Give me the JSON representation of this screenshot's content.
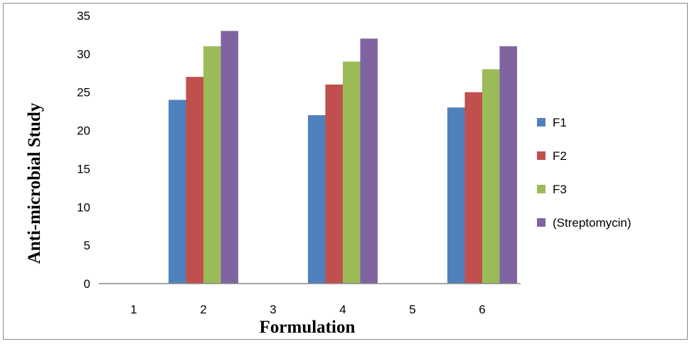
{
  "chart_data": {
    "type": "bar",
    "title": "",
    "xlabel": "Formulation",
    "ylabel": "Anti-microbial Study",
    "categories": [
      "1",
      "2",
      "3",
      "4",
      "5",
      "6"
    ],
    "ylim": [
      0,
      35
    ],
    "yticks": [
      "0",
      "5",
      "10",
      "15",
      "20",
      "25",
      "30",
      "35"
    ],
    "grid": false,
    "legend_position": "right",
    "series": [
      {
        "name": "F1",
        "color": "#4f81bd",
        "values": [
          null,
          24,
          null,
          22,
          null,
          23
        ]
      },
      {
        "name": "F2",
        "color": "#c0504d",
        "values": [
          null,
          27,
          null,
          26,
          null,
          25
        ]
      },
      {
        "name": "F3",
        "color": "#9bbb59",
        "values": [
          null,
          31,
          null,
          29,
          null,
          28
        ]
      },
      {
        "name": "(Streptomycin)",
        "color": "#8064a2",
        "values": [
          null,
          33,
          null,
          32,
          null,
          31
        ]
      }
    ]
  }
}
